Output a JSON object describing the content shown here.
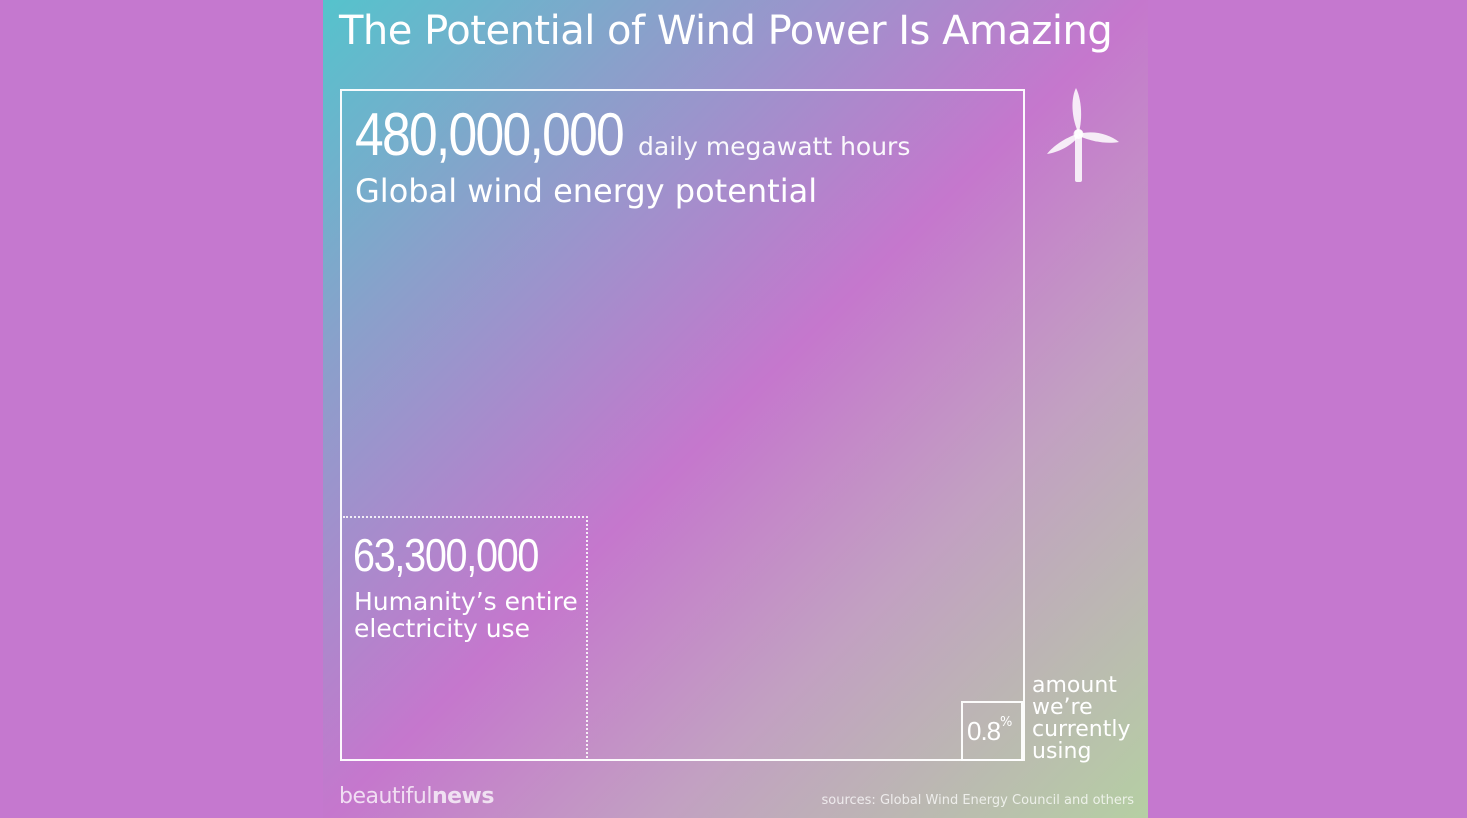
{
  "title": "The Potential of Wind Power Is Amazing",
  "potential": {
    "value": "480,000,000",
    "unit": "daily megawatt hours",
    "label": "Global wind energy potential"
  },
  "usage": {
    "value": "63,300,000",
    "label": "Humanity’s entire electricity use"
  },
  "current": {
    "value": "0.8",
    "percent_sign": "%",
    "label": "amount we’re currently using"
  },
  "brand": {
    "part1": "beautiful",
    "part2": "news"
  },
  "sources": "sources: Global Wind Energy Council and others",
  "icon": "wind-turbine-icon",
  "colors": {
    "background": "#c578cf",
    "gradient_start": "#55c3cc",
    "gradient_mid": "#c577cd",
    "gradient_end": "#b5cfa3"
  }
}
